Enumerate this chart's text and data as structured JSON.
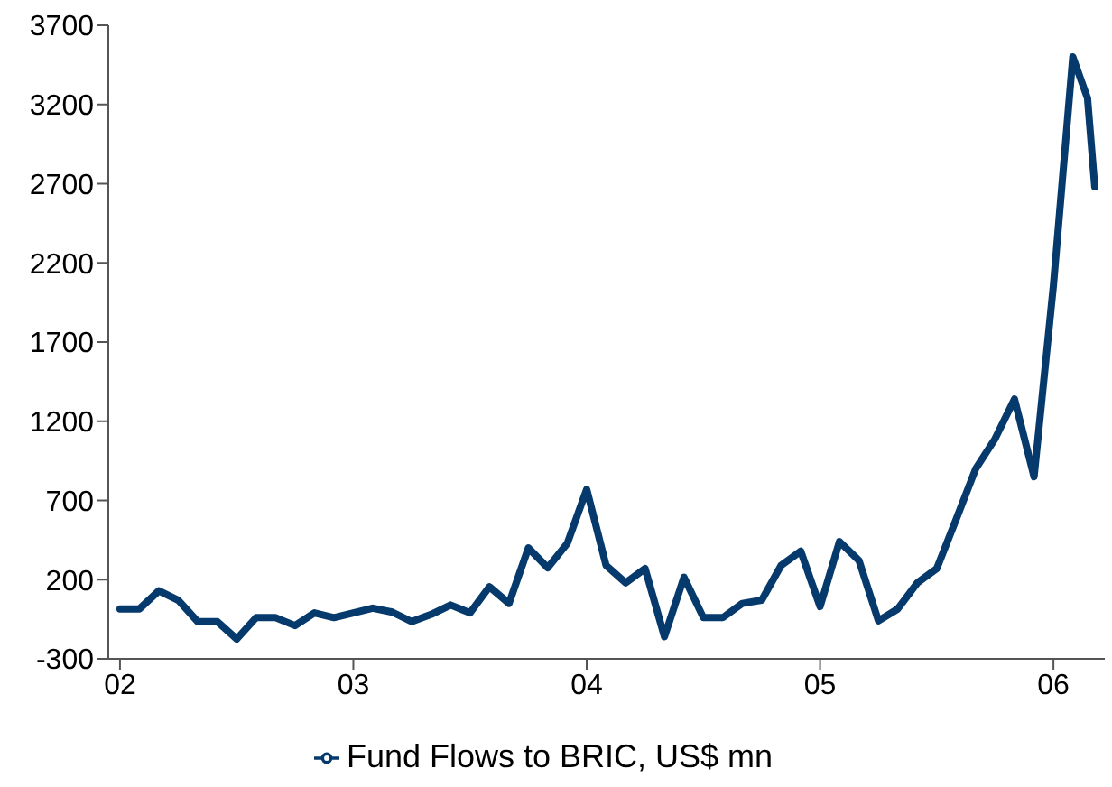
{
  "chart_data": {
    "type": "line",
    "x": [
      2002,
      2002.083,
      2002.167,
      2002.25,
      2002.333,
      2002.417,
      2002.5,
      2002.583,
      2002.667,
      2002.75,
      2002.833,
      2002.917,
      2003,
      2003.083,
      2003.167,
      2003.25,
      2003.333,
      2003.417,
      2003.5,
      2003.583,
      2003.667,
      2003.75,
      2003.833,
      2003.917,
      2004,
      2004.083,
      2004.167,
      2004.25,
      2004.333,
      2004.417,
      2004.5,
      2004.583,
      2004.667,
      2004.75,
      2004.833,
      2004.917,
      2005,
      2005.083,
      2005.167,
      2005.25,
      2005.333,
      2005.417,
      2005.5,
      2005.583,
      2005.667,
      2005.75,
      2005.833,
      2005.917,
      2006,
      2006.083,
      2006.146,
      2006.177
    ],
    "series": [
      {
        "name": "Fund Flows to BRIC, US$ mn",
        "color": "#063a6c",
        "values": [
          15,
          15,
          130,
          70,
          -65,
          -65,
          -175,
          -40,
          -40,
          -90,
          -10,
          -40,
          -10,
          20,
          -5,
          -65,
          -20,
          40,
          -10,
          155,
          50,
          400,
          275,
          430,
          770,
          290,
          180,
          270,
          -160,
          215,
          -40,
          -40,
          50,
          70,
          290,
          380,
          30,
          440,
          320,
          -60,
          15,
          180,
          270,
          580,
          900,
          1090,
          1340,
          850,
          2060,
          3500,
          3240,
          2680
        ]
      }
    ],
    "xlim": [
      2001.95,
      2006.22
    ],
    "xticks": [
      {
        "value": 2002,
        "label": "02"
      },
      {
        "value": 2003,
        "label": "03"
      },
      {
        "value": 2004,
        "label": "04"
      },
      {
        "value": 2005,
        "label": "05"
      },
      {
        "value": 2006,
        "label": "06"
      }
    ],
    "ylim": [
      -300,
      3700
    ],
    "yticks": [
      -300,
      200,
      700,
      1200,
      1700,
      2200,
      2700,
      3200,
      3700
    ],
    "grid": false,
    "legend": "bottom",
    "marker": "none",
    "line_style": "solid"
  }
}
